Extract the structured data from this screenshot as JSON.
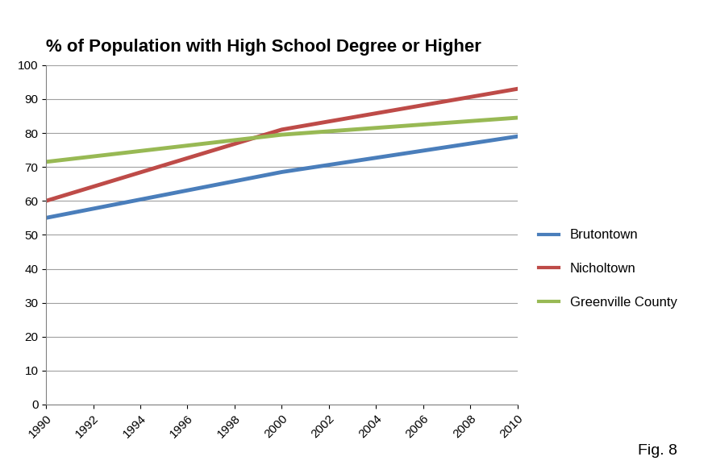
{
  "chart_data": {
    "type": "line",
    "title": "% of Population with High School Degree or Higher",
    "x": [
      1990,
      2000,
      2010
    ],
    "series": [
      {
        "name": "Brutontown",
        "color": "#4a7ebb",
        "values": [
          55,
          68.5,
          79
        ]
      },
      {
        "name": "Nicholtown",
        "color": "#be4b48",
        "values": [
          60,
          81,
          93
        ]
      },
      {
        "name": "Greenville County",
        "color": "#98b954",
        "values": [
          71.5,
          79.5,
          84.5
        ]
      }
    ],
    "xlim": [
      1990,
      2010
    ],
    "xticks": [
      1990,
      1992,
      1994,
      1996,
      1998,
      2000,
      2002,
      2004,
      2006,
      2008,
      2010
    ],
    "ylim": [
      0,
      100
    ],
    "yticks": [
      0,
      10,
      20,
      30,
      40,
      50,
      60,
      70,
      80,
      90,
      100
    ],
    "grid": true,
    "legend": "right",
    "annotations": [
      "Fig. 8"
    ]
  }
}
